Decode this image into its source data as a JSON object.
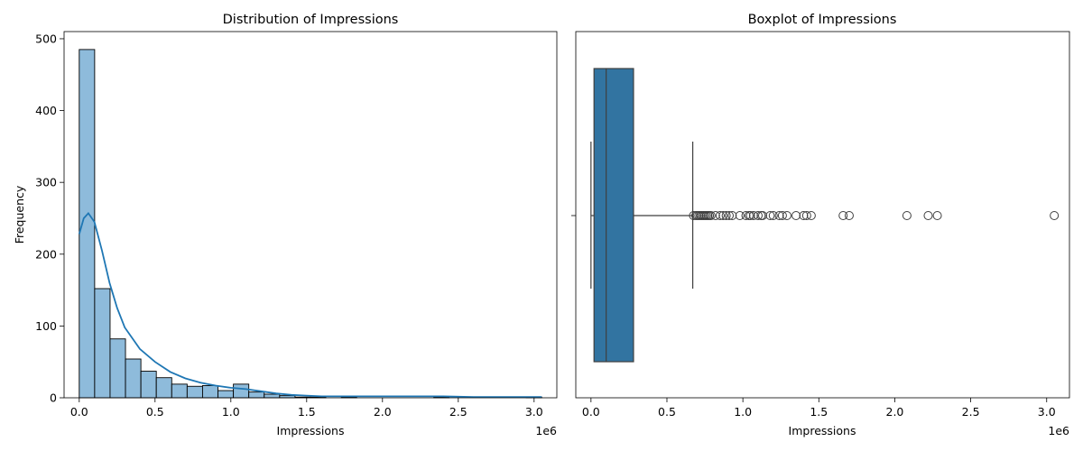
{
  "chart_data": [
    {
      "type": "bar",
      "variant": "histogram-with-kde",
      "title": "Distribution of Impressions",
      "xlabel": "Impressions",
      "ylabel": "Frequency",
      "x_offset_text": "1e6",
      "xlim": [
        -0.1,
        3.15
      ],
      "ylim": [
        0,
        510
      ],
      "xticks": [
        0.0,
        0.5,
        1.0,
        1.5,
        2.0,
        2.5,
        3.0
      ],
      "xtick_labels": [
        "0.0",
        "0.5",
        "1.0",
        "1.5",
        "2.0",
        "2.5",
        "3.0"
      ],
      "yticks": [
        0,
        100,
        200,
        300,
        400,
        500
      ],
      "ytick_labels": [
        "0",
        "100",
        "200",
        "300",
        "400",
        "500"
      ],
      "bin_range": [
        0.0,
        3.05
      ],
      "counts": [
        485,
        152,
        82,
        54,
        37,
        28,
        19,
        16,
        17,
        10,
        19,
        8,
        5,
        3,
        1,
        1,
        0,
        1,
        0,
        0,
        0,
        0,
        0,
        1,
        0,
        0,
        0,
        0,
        0,
        1
      ],
      "kde": {
        "x": [
          0.0,
          0.03,
          0.06,
          0.1,
          0.15,
          0.2,
          0.25,
          0.3,
          0.4,
          0.5,
          0.6,
          0.7,
          0.8,
          0.9,
          1.0,
          1.1,
          1.2,
          1.3,
          1.4,
          1.5,
          1.6,
          1.7,
          1.8,
          2.0,
          2.2,
          2.4,
          2.6,
          2.8,
          3.05
        ],
        "y": [
          228,
          250,
          257,
          245,
          205,
          160,
          125,
          98,
          68,
          50,
          36,
          27,
          21,
          17,
          14,
          12,
          9,
          6,
          4,
          3,
          2,
          2,
          2,
          2,
          2,
          2,
          1,
          1,
          1
        ]
      },
      "bar_color": "#8ebbdb",
      "bar_edge_color": "#000000",
      "kde_color": "#1f77b4"
    },
    {
      "type": "boxplot",
      "title": "Boxplot of Impressions",
      "xlabel": "Impressions",
      "x_offset_text": "1e6",
      "xlim": [
        -0.1,
        3.15
      ],
      "xticks": [
        0.0,
        0.5,
        1.0,
        1.5,
        2.0,
        2.5,
        3.0
      ],
      "xtick_labels": [
        "0.0",
        "0.5",
        "1.0",
        "1.5",
        "2.0",
        "2.5",
        "3.0"
      ],
      "whisker_low": 0.0,
      "q1": 0.02,
      "median": 0.1,
      "q3": 0.28,
      "whisker_high": 0.67,
      "outliers": [
        0.675,
        0.69,
        0.7,
        0.71,
        0.72,
        0.73,
        0.74,
        0.75,
        0.76,
        0.77,
        0.78,
        0.79,
        0.82,
        0.85,
        0.87,
        0.89,
        0.91,
        0.93,
        0.98,
        1.02,
        1.04,
        1.05,
        1.07,
        1.1,
        1.12,
        1.13,
        1.18,
        1.2,
        1.24,
        1.26,
        1.29,
        1.35,
        1.4,
        1.42,
        1.45,
        1.66,
        1.7,
        2.08,
        2.22,
        2.28,
        3.05
      ],
      "box_color": "#3274a1",
      "line_color": "#3f3f3f"
    }
  ]
}
